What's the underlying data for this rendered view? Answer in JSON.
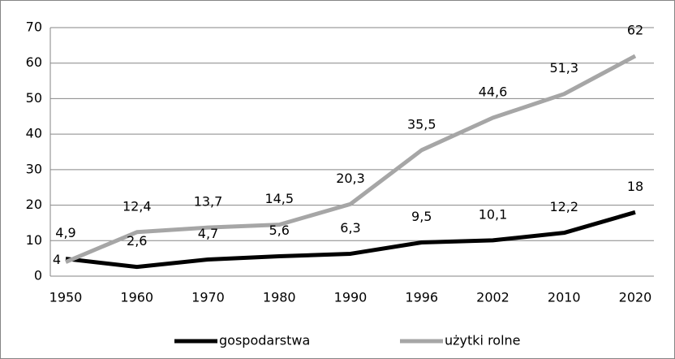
{
  "chart_data": {
    "type": "line",
    "categories": [
      "1950",
      "1960",
      "1970",
      "1980",
      "1990",
      "1996",
      "2002",
      "2010",
      "2020"
    ],
    "series": [
      {
        "name": "gospodarstwa",
        "color": "#000000",
        "values": [
          4.9,
          2.6,
          4.7,
          5.6,
          6.3,
          9.5,
          10.1,
          12.2,
          18
        ],
        "value_labels": [
          "4,9",
          "2,6",
          "4,7",
          "5,6",
          "6,3",
          "9,5",
          "10,1",
          "12,2",
          "18"
        ]
      },
      {
        "name": "użytki rolne",
        "color": "#a6a6a6",
        "values": [
          4,
          12.4,
          13.7,
          14.5,
          20.3,
          35.5,
          44.6,
          51.3,
          62
        ],
        "value_labels": [
          "4",
          "12,4",
          "13,7",
          "14,5",
          "20,3",
          "35,5",
          "44,6",
          "51,3",
          "62"
        ]
      }
    ],
    "ylim": [
      0,
      70
    ],
    "yticks": [
      0,
      10,
      20,
      30,
      40,
      50,
      60,
      70
    ],
    "grid": true,
    "legend": "bottom"
  }
}
